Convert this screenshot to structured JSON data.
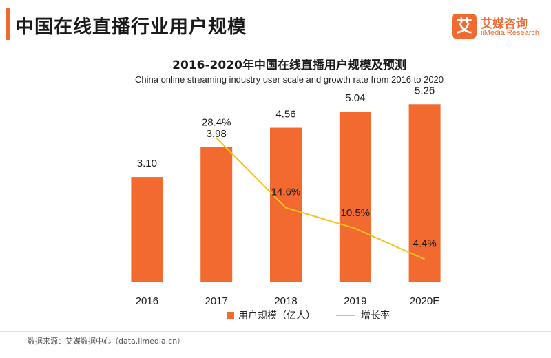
{
  "header": {
    "title": "中国在线直播行业用户规模"
  },
  "logo": {
    "mark": "艾",
    "name_cn": "艾媒咨询",
    "name_en": "iiMedia Research"
  },
  "footer": {
    "source": "数据来源：艾媒数据中心（data.iimedia.cn）"
  },
  "colors": {
    "bar": "#f26a30",
    "line": "#f7c21c",
    "accent": "#f26a30"
  },
  "chart_data": {
    "type": "bar",
    "title": "2016-2020年中国在线直播用户规模及预测",
    "subtitle": "China online streaming industry user scale and growth rate from 2016 to 2020",
    "categories": [
      "2016",
      "2017",
      "2018",
      "2019",
      "2020E"
    ],
    "series": [
      {
        "name": "用户规模（亿人）",
        "type": "bar",
        "values": [
          3.1,
          3.98,
          4.56,
          5.04,
          5.26
        ],
        "labels": [
          "3.10",
          "3.98",
          "4.56",
          "5.04",
          "5.26"
        ]
      },
      {
        "name": "增长率",
        "type": "line",
        "values": [
          null,
          28.4,
          14.6,
          10.5,
          4.4
        ],
        "labels": [
          "",
          "28.4%",
          "14.6%",
          "10.5%",
          "4.4%"
        ]
      }
    ],
    "bar_ylim": [
      0,
      6
    ],
    "line_ylim": [
      0,
      40
    ],
    "grid": false,
    "legend": "bottom"
  }
}
